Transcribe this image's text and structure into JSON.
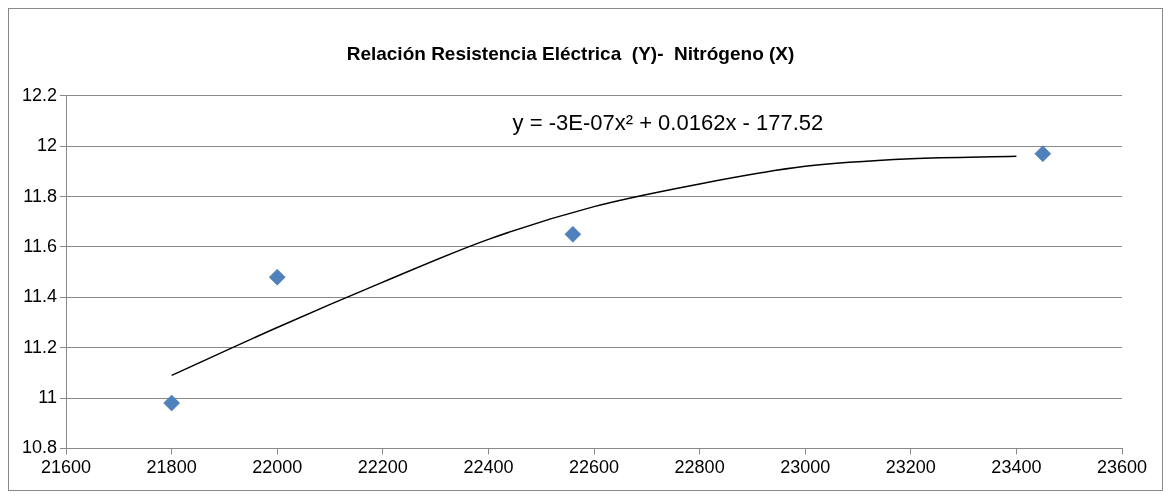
{
  "chart_data": {
    "type": "scatter",
    "title": "Relación Resistencia Eléctrica  (Y)-  Nitrógeno (X)",
    "series": [
      {
        "type": "scatter",
        "color": "#4f81bd",
        "marker": "diamond",
        "x": [
          21800,
          22000,
          22560,
          23450
        ],
        "values": [
          10.98,
          11.48,
          11.65,
          11.97
        ]
      },
      {
        "type": "line",
        "color": "#000000",
        "marker": "none",
        "x": [
          21800,
          22000,
          22200,
          22400,
          22600,
          22800,
          23000,
          23200,
          23400
        ],
        "values": [
          11.09,
          11.28,
          11.46,
          11.63,
          11.76,
          11.85,
          11.92,
          11.95,
          11.96
        ]
      }
    ],
    "xlim": [
      21600,
      23600
    ],
    "xticks": [
      21600,
      21800,
      22000,
      22200,
      22400,
      22600,
      22800,
      23000,
      23200,
      23400,
      23600
    ],
    "ylim": [
      10.8,
      12.2
    ],
    "yticks": [
      10.8,
      11,
      11.2,
      11.4,
      11.6,
      11.8,
      12,
      12.2
    ],
    "grid": "y",
    "legend": false,
    "annotations": [
      "y = -3E-07x² + 0.0162x - 177.52"
    ]
  }
}
